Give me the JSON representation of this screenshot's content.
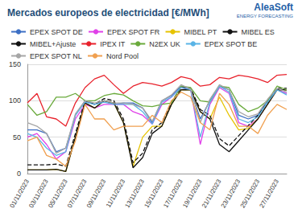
{
  "chart_data": {
    "type": "line",
    "title": "Mercados europeos de electricidad [€/MWh]",
    "annotations": [
      "AleaSoft",
      "ENERGY FORECASTING"
    ],
    "categories": [
      "01/11/2023",
      null,
      "03/11/2023",
      null,
      "05/11/2023",
      null,
      "07/11/2023",
      null,
      "09/11/2023",
      null,
      "11/11/2023",
      null,
      "13/11/2023",
      null,
      "15/11/2023",
      null,
      "17/11/2023",
      null,
      "19/11/2023",
      null,
      "21/11/2023",
      null,
      "23/11/2023",
      null,
      "25/11/2023",
      null,
      "27/11/2023",
      null
    ],
    "series": [
      {
        "name": "EPEX SPOT DE",
        "color": "#3d6fc4",
        "line_style": "solid",
        "values": [
          60,
          60,
          55,
          30,
          35,
          80,
          100,
          95,
          100,
          95,
          97,
          97,
          90,
          70,
          100,
          107,
          120,
          115,
          75,
          100,
          120,
          115,
          80,
          75,
          80,
          100,
          115,
          110
        ]
      },
      {
        "name": "EPEX SPOT FR",
        "color": "#e040e8",
        "line_style": "solid",
        "values": [
          50,
          55,
          40,
          20,
          30,
          75,
          95,
          90,
          95,
          95,
          95,
          85,
          80,
          68,
          95,
          105,
          118,
          115,
          40,
          95,
          118,
          110,
          70,
          65,
          75,
          95,
          115,
          110
        ]
      },
      {
        "name": "MIBEL PT",
        "color": "#e6c300",
        "line_style": "solid",
        "values": [
          5,
          5,
          5,
          6,
          3,
          50,
          97,
          90,
          100,
          97,
          70,
          10,
          50,
          65,
          65,
          95,
          115,
          115,
          85,
          75,
          105,
          80,
          60,
          62,
          75,
          95,
          115,
          115
        ]
      },
      {
        "name": "MIBEL ES",
        "color": "#111111",
        "line_style": "solid",
        "values": [
          5,
          5,
          5,
          6,
          3,
          50,
          97,
          90,
          100,
          97,
          70,
          8,
          22,
          55,
          65,
          95,
          115,
          115,
          85,
          75,
          40,
          30,
          45,
          60,
          75,
          95,
          115,
          115
        ]
      },
      {
        "name": "MIBEL+Ajuste",
        "color": "#111111",
        "line_style": "dashed",
        "values": [
          12,
          12,
          12,
          13,
          10,
          55,
          100,
          95,
          103,
          100,
          75,
          15,
          28,
          60,
          70,
          98,
          118,
          117,
          88,
          80,
          48,
          38,
          52,
          66,
          80,
          98,
          117,
          117
        ]
      },
      {
        "name": "IPEX IT",
        "color": "#e8222c",
        "line_style": "solid",
        "values": [
          97,
          110,
          78,
          75,
          65,
          97,
          118,
          130,
          135,
          122,
          110,
          120,
          125,
          123,
          120,
          125,
          133,
          130,
          120,
          122,
          132,
          130,
          135,
          133,
          130,
          125,
          135,
          136
        ]
      },
      {
        "name": "N2EX UK",
        "color": "#6aaa3c",
        "line_style": "solid",
        "values": [
          95,
          80,
          85,
          105,
          105,
          110,
          100,
          100,
          107,
          110,
          108,
          100,
          93,
          92,
          95,
          97,
          120,
          118,
          100,
          98,
          120,
          118,
          95,
          85,
          90,
          100,
          120,
          115
        ]
      },
      {
        "name": "EPEX SPOT BE",
        "color": "#5ab4e6",
        "line_style": "solid",
        "values": [
          55,
          50,
          35,
          25,
          30,
          80,
          98,
          95,
          98,
          95,
          95,
          95,
          85,
          68,
          98,
          105,
          118,
          115,
          50,
          98,
          120,
          112,
          75,
          70,
          78,
          98,
          115,
          108
        ]
      },
      {
        "name": "EPEX SPOT NL",
        "color": "#a6a6a6",
        "line_style": "solid",
        "values": [
          70,
          65,
          55,
          28,
          35,
          82,
          100,
          97,
          100,
          97,
          97,
          95,
          90,
          72,
          100,
          108,
          122,
          116,
          70,
          102,
          122,
          115,
          85,
          78,
          82,
          102,
          117,
          112
        ]
      },
      {
        "name": "Nord Pool",
        "color": "#f0a050",
        "line_style": "solid",
        "values": [
          45,
          50,
          25,
          20,
          10,
          45,
          95,
          75,
          75,
          60,
          65,
          65,
          65,
          80,
          70,
          100,
          112,
          105,
          70,
          60,
          110,
          95,
          65,
          65,
          55,
          80,
          95,
          88
        ]
      }
    ],
    "ylim": [
      0,
      150
    ],
    "yticks": [
      0,
      50,
      100,
      150
    ],
    "grid": true,
    "legend": "top"
  }
}
